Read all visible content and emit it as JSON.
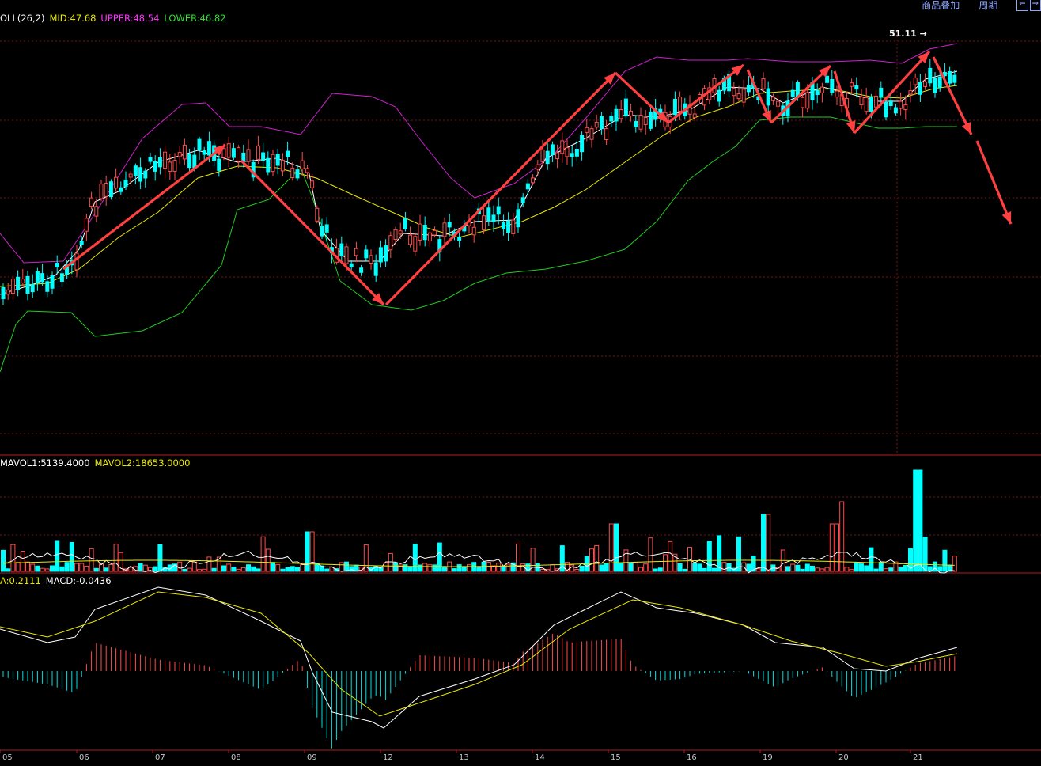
{
  "toolbar": {
    "overlay_label": "商品叠加",
    "period_label": "周期",
    "nav_prev": "⇐",
    "nav_next": "⇒"
  },
  "indicators": {
    "boll": {
      "name": "OLL(26,2)",
      "mid": "MID:47.68",
      "upper": "UPPER:48.54",
      "lower": "LOWER:46.82"
    },
    "vol": {
      "mavol1": "MAVOL1:5139.4000",
      "mavol2": "MAVOL2:18653.0000"
    },
    "macd": {
      "dea": "A:0.2111",
      "macd": "MACD:-0.0436"
    }
  },
  "colors": {
    "up": "#ff4c4c",
    "down": "#00ffff",
    "upper": "#cc22cc",
    "mid": "#e8e800",
    "lower": "#22cc22",
    "ma_fast": "#ffffff",
    "arrow": "#ff4040",
    "grid": "#7a1414"
  },
  "chart_data": {
    "type": "candlestick",
    "x_tick_labels": [
      "05",
      "06",
      "07",
      "08",
      "09",
      "12",
      "13",
      "14",
      "15",
      "16",
      "19",
      "20",
      "21"
    ],
    "price_high_label": "51.11",
    "boll": {
      "mid": 47.68,
      "upper": 48.54,
      "lower": 46.82
    },
    "volume": {
      "mavol1": 5139.4,
      "mavol2": 18653.0
    },
    "macd": {
      "dea": 0.2111,
      "macd": -0.0436
    },
    "trend_arrows": "red zig-zag trend arrows drawn over price panel"
  }
}
